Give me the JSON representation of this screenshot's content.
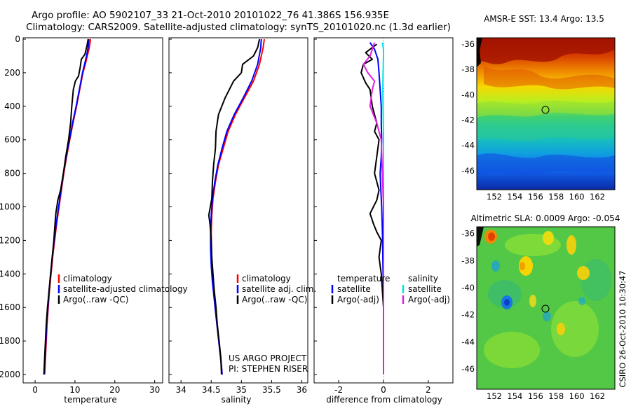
{
  "figure": {
    "title_line1": "Argo profile: AO 5902107_33 21-Oct-2010 20101022_76 41.386S 156.935E",
    "title_line2": "Climatology: CARS2009. Satellite-adjusted climatology: synTS_20101020.nc (1.3d earlier)",
    "side_label": "CSIRO 26-Oct-2010 10:30:47",
    "project_line1": "US ARGO PROJECT",
    "project_line2": "PI: STEPHEN RISER"
  },
  "colors": {
    "climatology": "#ff0000",
    "satellite": "#0000ff",
    "argo": "#000000",
    "temp_diff_sat": "#0000ff",
    "temp_diff_argo": "#000000",
    "sal_diff_sat": "#00e5e5",
    "sal_diff_argo": "#e020e0"
  },
  "chart_data": [
    {
      "type": "line",
      "name": "temperature-profile",
      "xlabel": "temperature",
      "ylabel": "",
      "xlim": [
        -3,
        32
      ],
      "ylim": [
        2050,
        0
      ],
      "xticks": [
        "0",
        "10",
        "20",
        "30"
      ],
      "xtick_values": [
        0,
        10,
        20,
        30
      ],
      "yticks": [
        "0",
        "200",
        "400",
        "600",
        "800",
        "1000",
        "1200",
        "1400",
        "1600",
        "1800",
        "2000"
      ],
      "ytick_values": [
        0,
        200,
        400,
        600,
        800,
        1000,
        1200,
        1400,
        1600,
        1800,
        2000
      ],
      "legend": [
        "climatology",
        "satellite-adjusted climatology",
        "Argo(..raw -QC)"
      ],
      "legend_position": "lower-right",
      "series": [
        {
          "name": "climatology",
          "color_key": "climatology",
          "points": [
            [
              13.9,
              0
            ],
            [
              13.6,
              50
            ],
            [
              13.1,
              100
            ],
            [
              12.6,
              150
            ],
            [
              12.0,
              200
            ],
            [
              11.2,
              300
            ],
            [
              10.4,
              400
            ],
            [
              9.5,
              500
            ],
            [
              8.7,
              600
            ],
            [
              7.9,
              700
            ],
            [
              7.2,
              800
            ],
            [
              6.6,
              900
            ],
            [
              6.0,
              1000
            ],
            [
              5.4,
              1100
            ],
            [
              4.9,
              1200
            ],
            [
              4.4,
              1300
            ],
            [
              4.0,
              1400
            ],
            [
              3.6,
              1500
            ],
            [
              3.3,
              1600
            ],
            [
              3.0,
              1700
            ],
            [
              2.8,
              1800
            ],
            [
              2.6,
              1900
            ],
            [
              2.4,
              2000
            ]
          ]
        },
        {
          "name": "satellite-adjusted climatology",
          "color_key": "satellite",
          "points": [
            [
              13.5,
              0
            ],
            [
              13.3,
              50
            ],
            [
              12.9,
              100
            ],
            [
              12.4,
              150
            ],
            [
              11.9,
              200
            ],
            [
              11.1,
              300
            ],
            [
              10.3,
              400
            ],
            [
              9.4,
              500
            ],
            [
              8.6,
              600
            ],
            [
              7.8,
              700
            ],
            [
              7.1,
              800
            ],
            [
              6.5,
              900
            ],
            [
              5.9,
              1000
            ],
            [
              5.3,
              1100
            ],
            [
              4.8,
              1200
            ],
            [
              4.3,
              1300
            ],
            [
              3.9,
              1400
            ],
            [
              3.5,
              1500
            ],
            [
              3.2,
              1600
            ],
            [
              2.9,
              1700
            ],
            [
              2.7,
              1800
            ],
            [
              2.5,
              1900
            ],
            [
              2.3,
              2000
            ]
          ]
        },
        {
          "name": "Argo(..raw -QC)",
          "color_key": "argo",
          "points": [
            [
              13.3,
              0
            ],
            [
              13.0,
              40
            ],
            [
              12.5,
              90
            ],
            [
              11.6,
              120
            ],
            [
              11.3,
              170
            ],
            [
              10.9,
              220
            ],
            [
              10.1,
              250
            ],
            [
              9.6,
              300
            ],
            [
              9.2,
              400
            ],
            [
              8.9,
              500
            ],
            [
              8.4,
              600
            ],
            [
              7.7,
              700
            ],
            [
              7.1,
              800
            ],
            [
              6.4,
              900
            ],
            [
              5.7,
              960
            ],
            [
              5.2,
              1040
            ],
            [
              5.0,
              1100
            ],
            [
              4.7,
              1200
            ],
            [
              4.3,
              1300
            ],
            [
              3.9,
              1400
            ],
            [
              3.5,
              1500
            ],
            [
              3.1,
              1600
            ],
            [
              2.8,
              1700
            ],
            [
              2.6,
              1800
            ],
            [
              2.4,
              1900
            ],
            [
              2.2,
              2000
            ]
          ]
        }
      ]
    },
    {
      "type": "line",
      "name": "salinity-profile",
      "xlabel": "salinity",
      "xlim": [
        33.8,
        36.1
      ],
      "ylim": [
        2050,
        0
      ],
      "xticks": [
        "34",
        "34.5",
        "35",
        "35.5",
        "36"
      ],
      "xtick_values": [
        34,
        34.5,
        35,
        35.5,
        36
      ],
      "legend": [
        "climatology",
        "satellite adj. clim.",
        "Argo(..raw -QC)"
      ],
      "legend_position": "lower-right",
      "series": [
        {
          "name": "climatology",
          "color_key": "climatology",
          "points": [
            [
              35.38,
              0
            ],
            [
              35.36,
              50
            ],
            [
              35.3,
              150
            ],
            [
              35.2,
              250
            ],
            [
              35.05,
              350
            ],
            [
              34.9,
              450
            ],
            [
              34.78,
              550
            ],
            [
              34.7,
              650
            ],
            [
              34.62,
              750
            ],
            [
              34.57,
              850
            ],
            [
              34.53,
              950
            ],
            [
              34.51,
              1050
            ],
            [
              34.5,
              1150
            ],
            [
              34.5,
              1250
            ],
            [
              34.51,
              1350
            ],
            [
              34.53,
              1450
            ],
            [
              34.55,
              1550
            ],
            [
              34.58,
              1650
            ],
            [
              34.61,
              1750
            ],
            [
              34.64,
              1850
            ],
            [
              34.67,
              1950
            ],
            [
              34.68,
              2000
            ]
          ]
        },
        {
          "name": "satellite adj. clim.",
          "color_key": "satellite",
          "points": [
            [
              35.33,
              0
            ],
            [
              35.32,
              50
            ],
            [
              35.27,
              150
            ],
            [
              35.17,
              250
            ],
            [
              35.03,
              350
            ],
            [
              34.88,
              450
            ],
            [
              34.76,
              550
            ],
            [
              34.68,
              650
            ],
            [
              34.61,
              750
            ],
            [
              34.56,
              850
            ],
            [
              34.52,
              950
            ],
            [
              34.5,
              1050
            ],
            [
              34.49,
              1150
            ],
            [
              34.49,
              1250
            ],
            [
              34.5,
              1350
            ],
            [
              34.52,
              1450
            ],
            [
              34.55,
              1550
            ],
            [
              34.58,
              1650
            ],
            [
              34.61,
              1750
            ],
            [
              34.64,
              1850
            ],
            [
              34.67,
              1950
            ],
            [
              34.68,
              2000
            ]
          ]
        },
        {
          "name": "Argo(..raw -QC)",
          "color_key": "argo",
          "points": [
            [
              35.3,
              0
            ],
            [
              35.27,
              50
            ],
            [
              35.2,
              100
            ],
            [
              35.02,
              150
            ],
            [
              35.0,
              200
            ],
            [
              34.87,
              250
            ],
            [
              34.8,
              300
            ],
            [
              34.73,
              350
            ],
            [
              34.62,
              450
            ],
            [
              34.58,
              550
            ],
            [
              34.57,
              650
            ],
            [
              34.54,
              750
            ],
            [
              34.52,
              850
            ],
            [
              34.51,
              950
            ],
            [
              34.46,
              1050
            ],
            [
              34.48,
              1100
            ],
            [
              34.5,
              1200
            ],
            [
              34.51,
              1300
            ],
            [
              34.53,
              1400
            ],
            [
              34.55,
              1500
            ],
            [
              34.58,
              1600
            ],
            [
              34.6,
              1700
            ],
            [
              34.63,
              1800
            ],
            [
              34.66,
              1900
            ],
            [
              34.67,
              2000
            ]
          ]
        }
      ]
    },
    {
      "type": "line",
      "name": "difference-profile",
      "xlabel": "difference from climatology",
      "xlim": [
        -3.1,
        3.1
      ],
      "ylim": [
        2050,
        0
      ],
      "xticks": [
        "-2",
        "0",
        "2"
      ],
      "xtick_values": [
        -2,
        0,
        2
      ],
      "legend_temperature_header": "temperature",
      "legend_salinity_header": "salinity",
      "legend": [
        "satellite",
        "Argo(-adj)",
        "satellite",
        "Argo(-adj)"
      ],
      "legend_position": "lower-right",
      "series": [
        {
          "name": "temperature satellite",
          "color_key": "temp_diff_sat",
          "points": [
            [
              -0.6,
              20
            ],
            [
              -0.4,
              60
            ],
            [
              -0.25,
              120
            ],
            [
              -0.2,
              200
            ],
            [
              -0.15,
              300
            ],
            [
              -0.1,
              400
            ],
            [
              -0.1,
              500
            ],
            [
              -0.08,
              600
            ],
            [
              -0.1,
              700
            ],
            [
              -0.15,
              800
            ],
            [
              -0.12,
              900
            ],
            [
              -0.08,
              1000
            ],
            [
              -0.06,
              1100
            ],
            [
              -0.04,
              1200
            ],
            [
              -0.03,
              1300
            ],
            [
              -0.02,
              1400
            ],
            [
              -0.01,
              1500
            ],
            [
              0.0,
              1600
            ],
            [
              0.0,
              1800
            ],
            [
              0.0,
              2000
            ]
          ]
        },
        {
          "name": "temperature Argo(-adj)",
          "color_key": "temp_diff_argo",
          "points": [
            [
              -0.3,
              30
            ],
            [
              -0.8,
              80
            ],
            [
              -0.5,
              120
            ],
            [
              -0.9,
              150
            ],
            [
              -1.0,
              200
            ],
            [
              -0.8,
              260
            ],
            [
              -0.6,
              300
            ],
            [
              -0.5,
              400
            ],
            [
              -0.3,
              500
            ],
            [
              -0.4,
              550
            ],
            [
              -0.2,
              600
            ],
            [
              -0.3,
              700
            ],
            [
              -0.4,
              800
            ],
            [
              -0.2,
              900
            ],
            [
              -0.3,
              960
            ],
            [
              -0.6,
              1040
            ],
            [
              -0.45,
              1100
            ],
            [
              -0.3,
              1150
            ],
            [
              -0.1,
              1200
            ],
            [
              -0.2,
              1300
            ],
            [
              -0.1,
              1400
            ],
            [
              -0.05,
              1500
            ],
            [
              0.0,
              1600
            ],
            [
              0.0,
              1800
            ],
            [
              0.0,
              2000
            ]
          ]
        },
        {
          "name": "salinity satellite",
          "color_key": "sal_diff_sat",
          "points": [
            [
              -0.05,
              20
            ],
            [
              0.0,
              60
            ],
            [
              0.0,
              100
            ],
            [
              -0.02,
              200
            ],
            [
              -0.03,
              300
            ],
            [
              -0.02,
              400
            ],
            [
              -0.01,
              500
            ],
            [
              0.0,
              600
            ],
            [
              0.0,
              1000
            ],
            [
              0.0,
              1500
            ],
            [
              0.0,
              2000
            ]
          ]
        },
        {
          "name": "salinity Argo(-adj)",
          "color_key": "sal_diff_argo",
          "points": [
            [
              -0.4,
              20
            ],
            [
              -0.5,
              60
            ],
            [
              -0.6,
              100
            ],
            [
              -0.9,
              150
            ],
            [
              -0.7,
              200
            ],
            [
              -0.4,
              250
            ],
            [
              -0.5,
              300
            ],
            [
              -0.6,
              400
            ],
            [
              -0.3,
              500
            ],
            [
              -0.1,
              600
            ],
            [
              -0.05,
              800
            ],
            [
              0.0,
              1000
            ],
            [
              0.0,
              1200
            ],
            [
              0.0,
              1500
            ],
            [
              0.0,
              2000
            ]
          ]
        }
      ]
    },
    {
      "type": "heatmap",
      "name": "sst-map",
      "title": "AMSR-E SST: 13.4  Argo: 13.5",
      "xticks": [
        "152",
        "154",
        "156",
        "158",
        "160",
        "162"
      ],
      "xtick_values": [
        152,
        154,
        156,
        158,
        160,
        162
      ],
      "yticks": [
        "-36",
        "-38",
        "-40",
        "-42",
        "-44",
        "-46"
      ],
      "ytick_values": [
        -36,
        -38,
        -40,
        -42,
        -44,
        -46
      ],
      "xlim": [
        150.3,
        163.7
      ],
      "ylim": [
        -47.5,
        -35.5
      ],
      "marker_position": [
        156.935,
        -41.386
      ],
      "colormap": "jet"
    },
    {
      "type": "heatmap",
      "name": "sla-map",
      "title": "Altimetric SLA: 0.0009  Argo: -0.054",
      "xticks": [
        "152",
        "154",
        "156",
        "158",
        "160",
        "162"
      ],
      "xtick_values": [
        152,
        154,
        156,
        158,
        160,
        162
      ],
      "yticks": [
        "-36",
        "-38",
        "-40",
        "-42",
        "-44",
        "-46"
      ],
      "ytick_values": [
        -36,
        -38,
        -40,
        -42,
        -44,
        -46
      ],
      "xlim": [
        150.3,
        163.7
      ],
      "ylim": [
        -47.5,
        -35.5
      ],
      "marker_position": [
        156.935,
        -41.386
      ],
      "colormap": "jet"
    }
  ]
}
